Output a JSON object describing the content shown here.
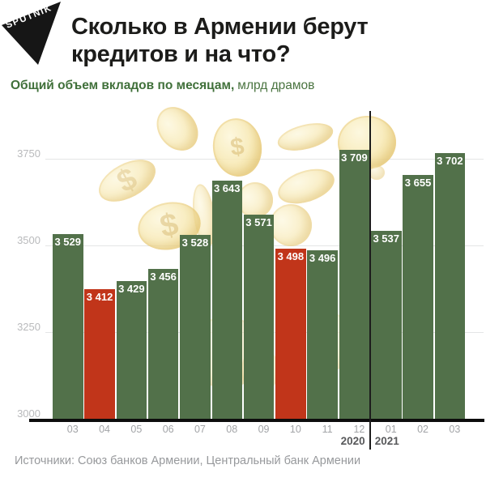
{
  "logo": {
    "text": "SPUTNIK"
  },
  "title": {
    "line1": "Сколько в Армении берут",
    "line2": "кредитов и на что?"
  },
  "subtitle": {
    "bold": "Общий объем вкладов по месяцам,",
    "regular": "млрд драмов"
  },
  "source": "Источники: Союз банков Армении, Центральный банк Армении",
  "chart_data": {
    "type": "bar",
    "title": "Общий объем вкладов по месяцам, млрд драмов",
    "ylabel": "млрд драмов",
    "categories": [
      "03",
      "04",
      "05",
      "06",
      "07",
      "08",
      "09",
      "10",
      "11",
      "12",
      "01",
      "02",
      "03"
    ],
    "values": [
      3529,
      3412,
      3429,
      3456,
      3528,
      3643,
      3571,
      3498,
      3496,
      3709,
      3537,
      3655,
      3702
    ],
    "value_labels": [
      "3 529",
      "3 412",
      "3 429",
      "3 456",
      "3 528",
      "3 643",
      "3 571",
      "3 498",
      "3 496",
      "3 709",
      "3 537",
      "3 655",
      "3 702"
    ],
    "highlight_indices": [
      1,
      7
    ],
    "y_ticks": [
      3750,
      3500,
      3250,
      3000
    ],
    "ylim": [
      3000,
      3800
    ],
    "grid": true,
    "year_labels": [
      "2020",
      "2021"
    ],
    "year_boundary_after_index": 9,
    "colors": {
      "bar_green": "#52714a",
      "bar_red": "#c1351a",
      "grid": "#e4e5e6",
      "axis": "#0d0d0d",
      "tick_label": "#b9babc",
      "month_label": "#a2a4a7",
      "year_label": "#58595b",
      "value_label": "#ffffff",
      "coin": "#f3e3a6"
    }
  }
}
